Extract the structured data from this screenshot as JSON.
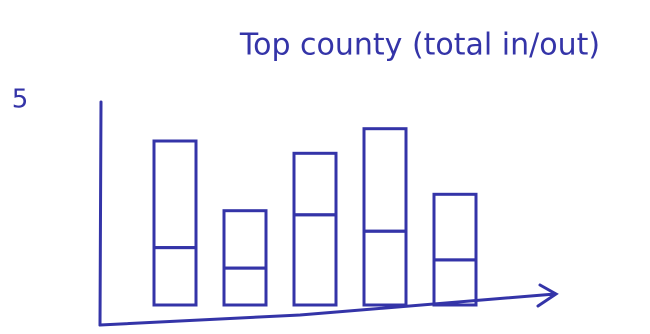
{
  "chart_data": {
    "type": "bar",
    "stacked": true,
    "title": "Top county (total in/out)",
    "categories": [
      null,
      null,
      null,
      null,
      null
    ],
    "series": [
      {
        "color": "#3434a8",
        "values": [
          1.4,
          0.9,
          2.2,
          1.8,
          1.1
        ]
      },
      {
        "color": "#3434a8",
        "values": [
          2.6,
          1.4,
          1.5,
          2.5,
          1.6
        ]
      }
    ],
    "ylim": [
      0,
      5
    ],
    "yticks": [
      5
    ],
    "grid": false
  }
}
